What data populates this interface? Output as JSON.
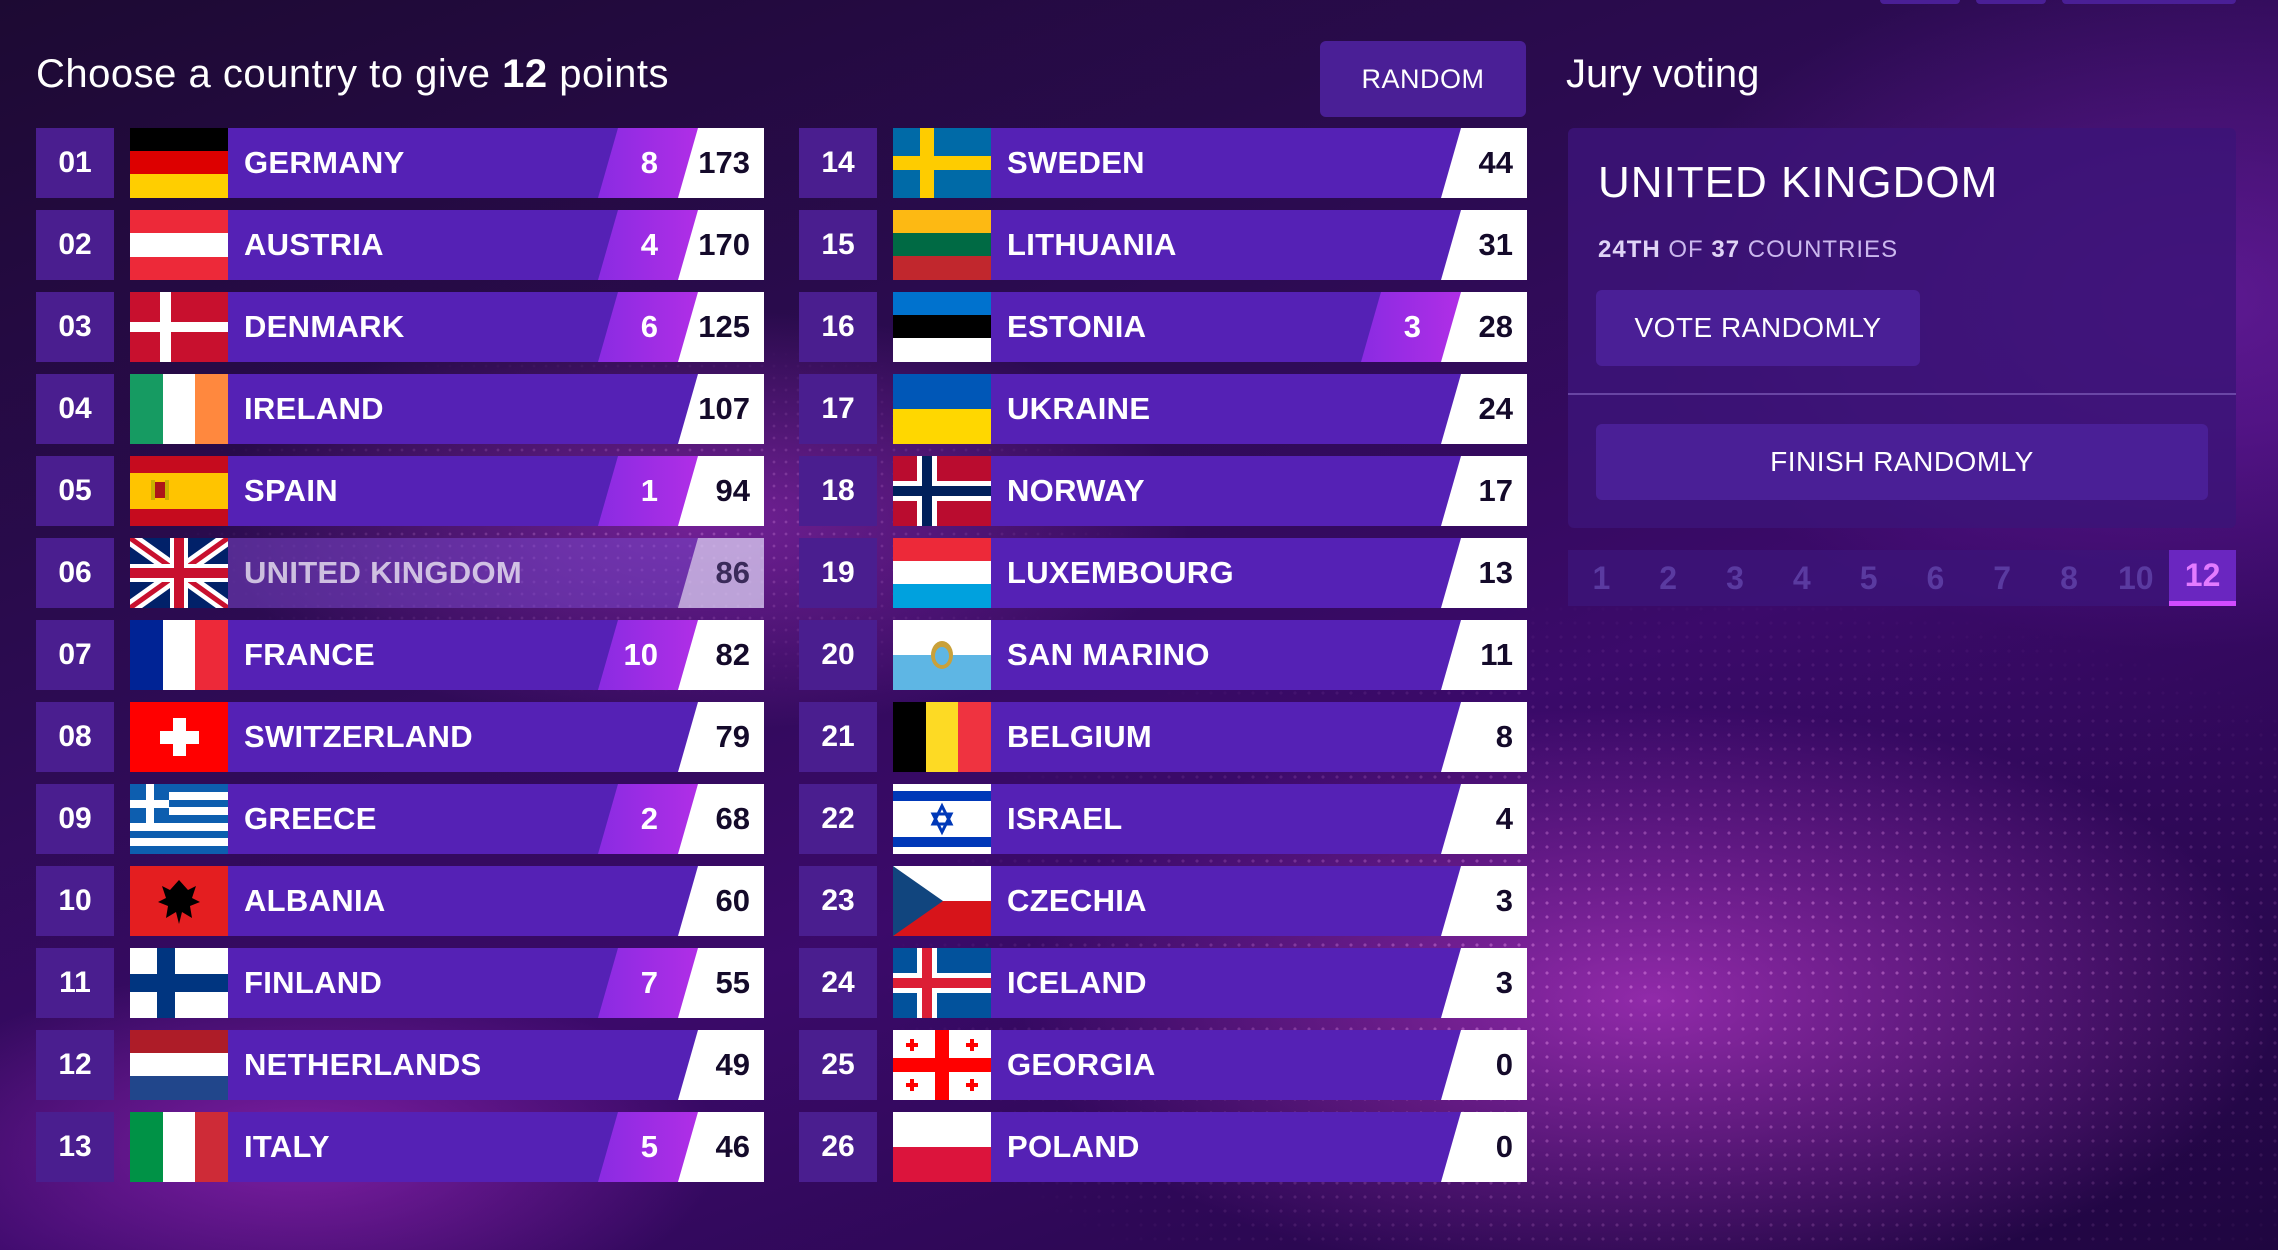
{
  "header": {
    "title_prefix": "Choose a country to give ",
    "title_points": "12",
    "title_suffix": " points",
    "random_label": "RANDOM"
  },
  "scoreboard": [
    {
      "rank": "01",
      "country": "GERMANY",
      "given": "8",
      "points": "173",
      "flag": "germany"
    },
    {
      "rank": "02",
      "country": "AUSTRIA",
      "given": "4",
      "points": "170",
      "flag": "austria"
    },
    {
      "rank": "03",
      "country": "DENMARK",
      "given": "6",
      "points": "125",
      "flag": "denmark"
    },
    {
      "rank": "04",
      "country": "IRELAND",
      "given": "",
      "points": "107",
      "flag": "ireland"
    },
    {
      "rank": "05",
      "country": "SPAIN",
      "given": "1",
      "points": "94",
      "flag": "spain"
    },
    {
      "rank": "06",
      "country": "UNITED KINGDOM",
      "given": "",
      "points": "86",
      "flag": "uk",
      "self": true
    },
    {
      "rank": "07",
      "country": "FRANCE",
      "given": "10",
      "points": "82",
      "flag": "france"
    },
    {
      "rank": "08",
      "country": "SWITZERLAND",
      "given": "",
      "points": "79",
      "flag": "switzerland"
    },
    {
      "rank": "09",
      "country": "GREECE",
      "given": "2",
      "points": "68",
      "flag": "greece"
    },
    {
      "rank": "10",
      "country": "ALBANIA",
      "given": "",
      "points": "60",
      "flag": "albania"
    },
    {
      "rank": "11",
      "country": "FINLAND",
      "given": "7",
      "points": "55",
      "flag": "finland"
    },
    {
      "rank": "12",
      "country": "NETHERLANDS",
      "given": "",
      "points": "49",
      "flag": "netherlands"
    },
    {
      "rank": "13",
      "country": "ITALY",
      "given": "5",
      "points": "46",
      "flag": "italy"
    },
    {
      "rank": "14",
      "country": "SWEDEN",
      "given": "",
      "points": "44",
      "flag": "sweden"
    },
    {
      "rank": "15",
      "country": "LITHUANIA",
      "given": "",
      "points": "31",
      "flag": "lithuania"
    },
    {
      "rank": "16",
      "country": "ESTONIA",
      "given": "3",
      "points": "28",
      "flag": "estonia"
    },
    {
      "rank": "17",
      "country": "UKRAINE",
      "given": "",
      "points": "24",
      "flag": "ukraine"
    },
    {
      "rank": "18",
      "country": "NORWAY",
      "given": "",
      "points": "17",
      "flag": "norway"
    },
    {
      "rank": "19",
      "country": "LUXEMBOURG",
      "given": "",
      "points": "13",
      "flag": "luxembourg"
    },
    {
      "rank": "20",
      "country": "SAN MARINO",
      "given": "",
      "points": "11",
      "flag": "sanmarino"
    },
    {
      "rank": "21",
      "country": "BELGIUM",
      "given": "",
      "points": "8",
      "flag": "belgium"
    },
    {
      "rank": "22",
      "country": "ISRAEL",
      "given": "",
      "points": "4",
      "flag": "israel"
    },
    {
      "rank": "23",
      "country": "CZECHIA",
      "given": "",
      "points": "3",
      "flag": "czechia"
    },
    {
      "rank": "24",
      "country": "ICELAND",
      "given": "",
      "points": "3",
      "flag": "iceland"
    },
    {
      "rank": "25",
      "country": "GEORGIA",
      "given": "",
      "points": "0",
      "flag": "georgia"
    },
    {
      "rank": "26",
      "country": "POLAND",
      "given": "",
      "points": "0",
      "flag": "poland"
    }
  ],
  "jury": {
    "title": "Jury voting",
    "country": "UNITED KINGDOM",
    "position_bold": "24TH",
    "position_mid": " OF ",
    "position_total": "37",
    "position_suffix": " COUNTRIES",
    "vote_randomly": "VOTE RANDOMLY",
    "finish_randomly": "FINISH RANDOMLY",
    "point_values": [
      "1",
      "2",
      "3",
      "4",
      "5",
      "6",
      "7",
      "8",
      "10",
      "12"
    ],
    "active_point": "12"
  },
  "colors": {
    "accent": "#b02ee6",
    "button": "#4a1f96",
    "bar": "#5521b5"
  }
}
